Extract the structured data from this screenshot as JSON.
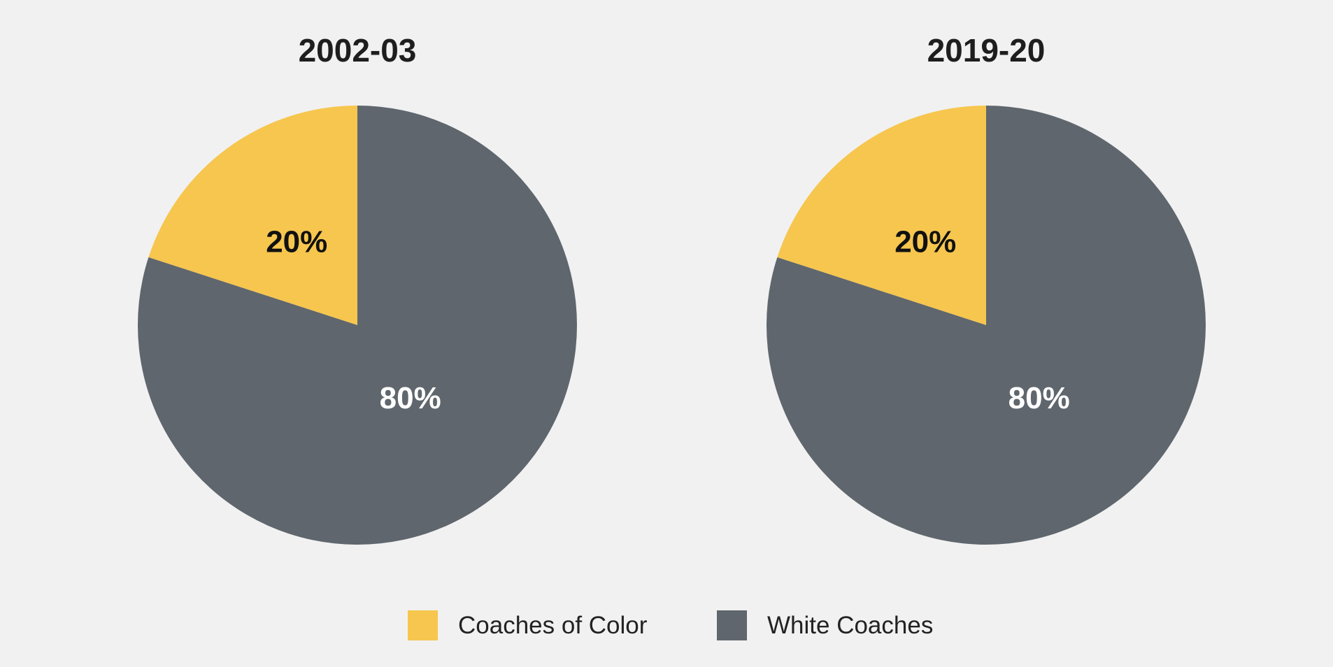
{
  "chart_data": [
    {
      "type": "pie",
      "title": "2002-03",
      "slices": [
        {
          "label": "Coaches of Color",
          "value": 20,
          "display": "20%"
        },
        {
          "label": "White Coaches",
          "value": 80,
          "display": "80%"
        }
      ]
    },
    {
      "type": "pie",
      "title": "2019-20",
      "slices": [
        {
          "label": "Coaches of Color",
          "value": 20,
          "display": "20%"
        },
        {
          "label": "White Coaches",
          "value": 80,
          "display": "80%"
        }
      ]
    }
  ],
  "legend": {
    "placement": "bottom-center",
    "items": [
      {
        "label": "Coaches of Color",
        "color": "#f6c64e"
      },
      {
        "label": "White Coaches",
        "color": "#5f666d"
      }
    ]
  },
  "colors": {
    "coaches_of_color": "#f6c64e",
    "white_coaches": "#5f666d",
    "background": "#f1f1f1",
    "label_on_yellow": "#111111",
    "label_on_gray": "#ffffff"
  }
}
